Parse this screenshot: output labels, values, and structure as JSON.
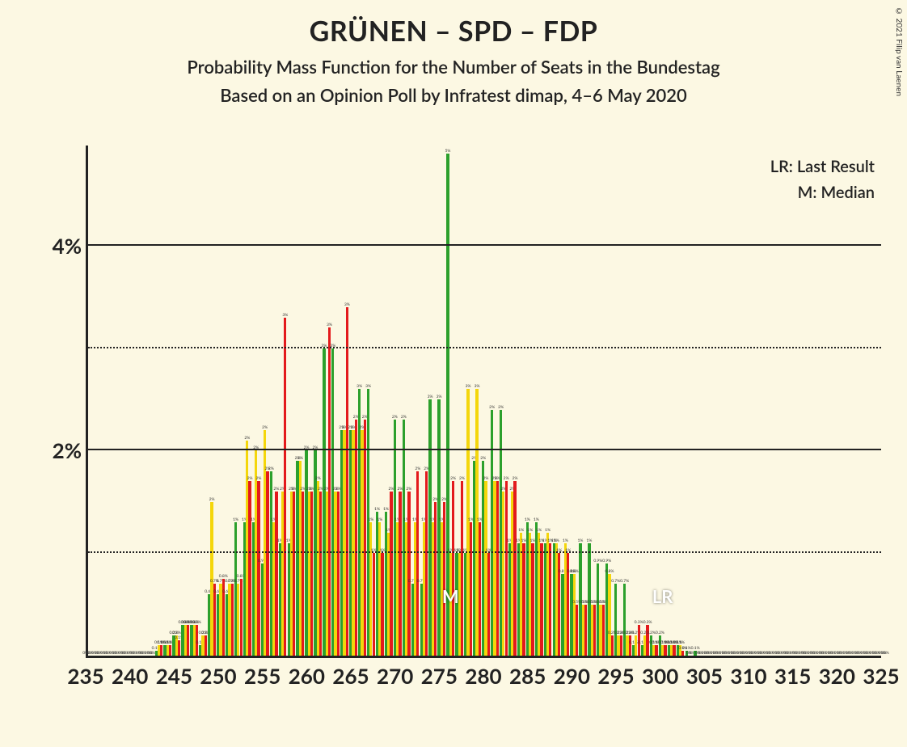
{
  "copyright": "© 2021 Filip van Laenen",
  "titles": {
    "main": "GRÜNEN – SPD – FDP",
    "sub": "Probability Mass Function for the Number of Seats in the Bundestag",
    "sub2": "Based on an Opinion Poll by Infratest dimap, 4–6 May 2020"
  },
  "legend": {
    "lr": "LR: Last Result",
    "m": "M: Median"
  },
  "chart": {
    "type": "bar",
    "background_color": "#fcf8e3",
    "axis_color": "#222222",
    "grid_dotted_color": "#222222",
    "ylim": [
      0,
      5
    ],
    "y_major_ticks": [
      2,
      4
    ],
    "y_minor_ticks": [
      1,
      3
    ],
    "y_tick_labels": {
      "2": "2%",
      "4": "4%"
    },
    "xlim": [
      235,
      325
    ],
    "x_tick_step": 5,
    "x_tick_start": 235,
    "series_colors": {
      "green": "#2ca02c",
      "yellow": "#f4d60b",
      "red": "#e31a1c"
    },
    "bar_group_width": 0.9,
    "bar_labels_fontsize": 5,
    "x_font_size": 26,
    "y_font_size": 26,
    "marker_M_x": 276,
    "marker_LR_x": 300,
    "marker_color": "#ffffff",
    "data": [
      {
        "x": 235,
        "g": 0,
        "y": 0,
        "r": 0
      },
      {
        "x": 236,
        "g": 0,
        "y": 0,
        "r": 0
      },
      {
        "x": 237,
        "g": 0,
        "y": 0,
        "r": 0
      },
      {
        "x": 238,
        "g": 0,
        "y": 0,
        "r": 0
      },
      {
        "x": 239,
        "g": 0,
        "y": 0,
        "r": 0
      },
      {
        "x": 240,
        "g": 0,
        "y": 0,
        "r": 0
      },
      {
        "x": 241,
        "g": 0,
        "y": 0,
        "r": 0
      },
      {
        "x": 242,
        "g": 0,
        "y": 0,
        "r": 0
      },
      {
        "x": 243,
        "g": 0.05,
        "y": 0.1,
        "r": 0.1
      },
      {
        "x": 244,
        "g": 0.1,
        "y": 0.1,
        "r": 0.1
      },
      {
        "x": 245,
        "g": 0.2,
        "y": 0.2,
        "r": 0.15
      },
      {
        "x": 246,
        "g": 0.3,
        "y": 0.3,
        "r": 0.3
      },
      {
        "x": 247,
        "g": 0.3,
        "y": 0.3,
        "r": 0.3
      },
      {
        "x": 248,
        "g": 0.1,
        "y": 0.2,
        "r": 0.2
      },
      {
        "x": 249,
        "g": 0.6,
        "y": 1.5,
        "r": 0.7
      },
      {
        "x": 250,
        "g": 0.6,
        "y": 0.7,
        "r": 0.75
      },
      {
        "x": 251,
        "g": 0.6,
        "y": 0.7,
        "r": 0.7
      },
      {
        "x": 252,
        "g": 1.3,
        "y": 0.7,
        "r": 0.75
      },
      {
        "x": 253,
        "g": 1.3,
        "y": 2.1,
        "r": 1.7
      },
      {
        "x": 254,
        "g": 1.3,
        "y": 2.0,
        "r": 1.7
      },
      {
        "x": 255,
        "g": 0.9,
        "y": 2.2,
        "r": 1.8
      },
      {
        "x": 256,
        "g": 1.8,
        "y": 1.3,
        "r": 1.6
      },
      {
        "x": 257,
        "g": 1.1,
        "y": 1.6,
        "r": 3.3
      },
      {
        "x": 258,
        "g": 1.1,
        "y": 1.6,
        "r": 1.6
      },
      {
        "x": 259,
        "g": 1.9,
        "y": 1.9,
        "r": 1.6
      },
      {
        "x": 260,
        "g": 2.0,
        "y": 1.6,
        "r": 1.6
      },
      {
        "x": 261,
        "g": 2.0,
        "y": 1.7,
        "r": 1.6
      },
      {
        "x": 262,
        "g": 3.0,
        "y": 1.6,
        "r": 3.2
      },
      {
        "x": 263,
        "g": 3.0,
        "y": 1.6,
        "r": 1.6
      },
      {
        "x": 264,
        "g": 2.2,
        "y": 2.2,
        "r": 3.4
      },
      {
        "x": 265,
        "g": 2.2,
        "y": 2.2,
        "r": 2.3
      },
      {
        "x": 266,
        "g": 2.6,
        "y": 2.2,
        "r": 2.3
      },
      {
        "x": 267,
        "g": 2.6,
        "y": 1.3,
        "r": 1.0
      },
      {
        "x": 268,
        "g": 1.4,
        "y": 1.3,
        "r": 1.0
      },
      {
        "x": 269,
        "g": 1.4,
        "y": 1.2,
        "r": 1.6
      },
      {
        "x": 270,
        "g": 2.3,
        "y": 1.3,
        "r": 1.6
      },
      {
        "x": 271,
        "g": 2.3,
        "y": 1.3,
        "r": 1.6
      },
      {
        "x": 272,
        "g": 0.7,
        "y": 1.3,
        "r": 1.8
      },
      {
        "x": 273,
        "g": 0.7,
        "y": 1.3,
        "r": 1.8
      },
      {
        "x": 274,
        "g": 2.5,
        "y": 1.3,
        "r": 1.5
      },
      {
        "x": 275,
        "g": 2.5,
        "y": 1.3,
        "r": 1.5
      },
      {
        "x": 276,
        "g": 4.9,
        "y": 1.0,
        "r": 1.7
      },
      {
        "x": 277,
        "g": 1.0,
        "y": 1.0,
        "r": 1.7
      },
      {
        "x": 278,
        "g": 1.0,
        "y": 2.6,
        "r": 1.3
      },
      {
        "x": 279,
        "g": 1.9,
        "y": 2.6,
        "r": 1.3
      },
      {
        "x": 280,
        "g": 1.9,
        "y": 1.7,
        "r": 1.0
      },
      {
        "x": 281,
        "g": 2.4,
        "y": 1.7,
        "r": 1.7
      },
      {
        "x": 282,
        "g": 2.4,
        "y": 1.6,
        "r": 1.7
      },
      {
        "x": 283,
        "g": 1.1,
        "y": 1.6,
        "r": 1.7
      },
      {
        "x": 284,
        "g": 1.1,
        "y": 1.2,
        "r": 1.1
      },
      {
        "x": 285,
        "g": 1.3,
        "y": 1.2,
        "r": 1.1
      },
      {
        "x": 286,
        "g": 1.3,
        "y": 1.2,
        "r": 1.1
      },
      {
        "x": 287,
        "g": 1.1,
        "y": 1.2,
        "r": 1.1
      },
      {
        "x": 288,
        "g": 1.1,
        "y": 1.1,
        "r": 1.0
      },
      {
        "x": 289,
        "g": 0.8,
        "y": 1.1,
        "r": 1.0
      },
      {
        "x": 290,
        "g": 0.8,
        "y": 0.8,
        "r": 0.5
      },
      {
        "x": 291,
        "g": 1.1,
        "y": 0.5,
        "r": 0.5
      },
      {
        "x": 292,
        "g": 1.1,
        "y": 0.5,
        "r": 0.5
      },
      {
        "x": 293,
        "g": 0.9,
        "y": 0.5,
        "r": 0.5
      },
      {
        "x": 294,
        "g": 0.9,
        "y": 0.8,
        "r": 0.2
      },
      {
        "x": 295,
        "g": 0.7,
        "y": 0.2,
        "r": 0.2
      },
      {
        "x": 296,
        "g": 0.7,
        "y": 0.2,
        "r": 0.2
      },
      {
        "x": 297,
        "g": 0.1,
        "y": 0.2,
        "r": 0.3
      },
      {
        "x": 298,
        "g": 0.1,
        "y": 0.2,
        "r": 0.3
      },
      {
        "x": 299,
        "g": 0.2,
        "y": 0.1,
        "r": 0.1
      },
      {
        "x": 300,
        "g": 0.2,
        "y": 0.1,
        "r": 0.1
      },
      {
        "x": 301,
        "g": 0.1,
        "y": 0.1,
        "r": 0.1
      },
      {
        "x": 302,
        "g": 0.1,
        "y": 0.1,
        "r": 0.05
      },
      {
        "x": 303,
        "g": 0.05,
        "y": 0,
        "r": 0
      },
      {
        "x": 304,
        "g": 0.05,
        "y": 0,
        "r": 0
      },
      {
        "x": 305,
        "g": 0,
        "y": 0,
        "r": 0
      },
      {
        "x": 306,
        "g": 0,
        "y": 0,
        "r": 0
      },
      {
        "x": 307,
        "g": 0,
        "y": 0,
        "r": 0
      },
      {
        "x": 308,
        "g": 0,
        "y": 0,
        "r": 0
      },
      {
        "x": 309,
        "g": 0,
        "y": 0,
        "r": 0
      },
      {
        "x": 310,
        "g": 0,
        "y": 0,
        "r": 0
      },
      {
        "x": 311,
        "g": 0,
        "y": 0,
        "r": 0
      },
      {
        "x": 312,
        "g": 0,
        "y": 0,
        "r": 0
      },
      {
        "x": 313,
        "g": 0,
        "y": 0,
        "r": 0
      },
      {
        "x": 314,
        "g": 0,
        "y": 0,
        "r": 0
      },
      {
        "x": 315,
        "g": 0,
        "y": 0,
        "r": 0
      },
      {
        "x": 316,
        "g": 0,
        "y": 0,
        "r": 0
      },
      {
        "x": 317,
        "g": 0,
        "y": 0,
        "r": 0
      },
      {
        "x": 318,
        "g": 0,
        "y": 0,
        "r": 0
      },
      {
        "x": 319,
        "g": 0,
        "y": 0,
        "r": 0
      },
      {
        "x": 320,
        "g": 0,
        "y": 0,
        "r": 0
      },
      {
        "x": 321,
        "g": 0,
        "y": 0,
        "r": 0
      },
      {
        "x": 322,
        "g": 0,
        "y": 0,
        "r": 0
      },
      {
        "x": 323,
        "g": 0,
        "y": 0,
        "r": 0
      },
      {
        "x": 324,
        "g": 0,
        "y": 0,
        "r": 0
      },
      {
        "x": 325,
        "g": 0,
        "y": 0,
        "r": 0
      }
    ]
  }
}
